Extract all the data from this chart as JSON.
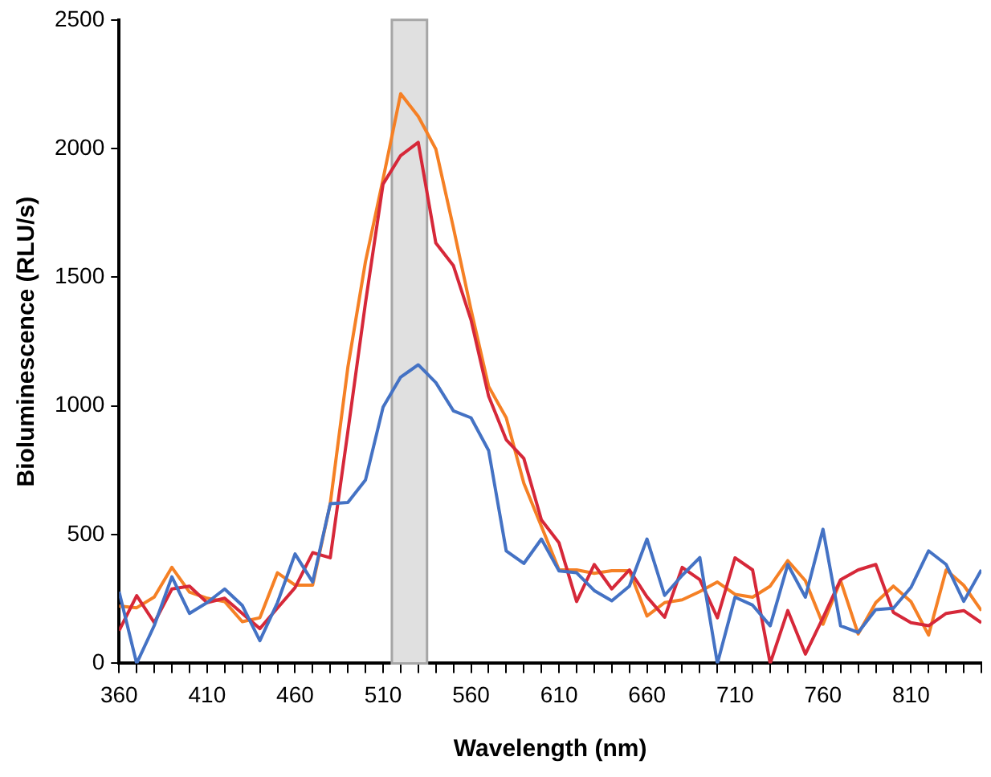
{
  "chart_data": {
    "type": "line",
    "xlabel": "Wavelength (nm)",
    "ylabel": "Bioluminescence (RLU/s)",
    "x": [
      360,
      370,
      380,
      390,
      400,
      410,
      420,
      430,
      440,
      450,
      460,
      470,
      480,
      490,
      500,
      510,
      520,
      530,
      540,
      550,
      560,
      570,
      580,
      590,
      600,
      610,
      620,
      630,
      640,
      650,
      660,
      670,
      680,
      690,
      700,
      710,
      720,
      730,
      740,
      750,
      760,
      770,
      780,
      790,
      800,
      810,
      820,
      830,
      840,
      850
    ],
    "series": [
      {
        "color": "#4472c4",
        "values": [
          278,
          0,
          147,
          336,
          194,
          236,
          289,
          225,
          88,
          236,
          425,
          316,
          620,
          625,
          712,
          995,
          1112,
          1160,
          1091,
          981,
          954,
          827,
          437,
          388,
          483,
          359,
          352,
          283,
          243,
          300,
          483,
          264,
          342,
          411,
          0,
          257,
          226,
          146,
          384,
          257,
          521,
          146,
          120,
          209,
          214,
          295,
          437,
          384,
          241,
          363
        ]
      },
      {
        "color": "#d62839",
        "values": [
          127,
          263,
          158,
          289,
          300,
          236,
          253,
          194,
          135,
          215,
          294,
          430,
          410,
          900,
          1400,
          1862,
          1973,
          2024,
          1633,
          1545,
          1334,
          1038,
          869,
          796,
          557,
          468,
          240,
          384,
          289,
          363,
          258,
          179,
          373,
          325,
          177,
          410,
          363,
          0,
          205,
          36,
          177,
          325,
          363,
          384,
          198,
          158,
          146,
          194,
          205,
          158
        ]
      },
      {
        "color": "#f58025",
        "values": [
          223,
          216,
          258,
          373,
          277,
          253,
          240,
          162,
          177,
          352,
          304,
          304,
          620,
          1150,
          1560,
          1881,
          2213,
          2125,
          1998,
          1692,
          1374,
          1076,
          954,
          700,
          532,
          363,
          363,
          350,
          360,
          360,
          184,
          236,
          247,
          279,
          316,
          268,
          257,
          300,
          399,
          321,
          152,
          321,
          114,
          236,
          300,
          240,
          110,
          363,
          303,
          205
        ]
      }
    ],
    "xlim": [
      360,
      850
    ],
    "xticks": [
      360,
      {
        "value": 370,
        "label": null
      },
      {
        "value": 380,
        "label": null
      },
      {
        "value": 390,
        "label": null
      },
      {
        "value": 400,
        "label": null
      },
      410,
      {
        "value": 420,
        "label": null
      },
      {
        "value": 430,
        "label": null
      },
      {
        "value": 440,
        "label": null
      },
      {
        "value": 450,
        "label": null
      },
      460,
      {
        "value": 470,
        "label": null
      },
      {
        "value": 480,
        "label": null
      },
      {
        "value": 490,
        "label": null
      },
      {
        "value": 500,
        "label": null
      },
      510,
      {
        "value": 520,
        "label": null
      },
      {
        "value": 530,
        "label": null
      },
      {
        "value": 540,
        "label": null
      },
      {
        "value": 550,
        "label": null
      },
      560,
      {
        "value": 570,
        "label": null
      },
      {
        "value": 580,
        "label": null
      },
      {
        "value": 590,
        "label": null
      },
      {
        "value": 600,
        "label": null
      },
      610,
      {
        "value": 620,
        "label": null
      },
      {
        "value": 630,
        "label": null
      },
      {
        "value": 640,
        "label": null
      },
      {
        "value": 650,
        "label": null
      },
      660,
      {
        "value": 670,
        "label": null
      },
      {
        "value": 680,
        "label": null
      },
      {
        "value": 690,
        "label": null
      },
      {
        "value": 700,
        "label": null
      },
      710,
      {
        "value": 720,
        "label": null
      },
      {
        "value": 730,
        "label": null
      },
      {
        "value": 740,
        "label": null
      },
      {
        "value": 750,
        "label": null
      },
      760,
      {
        "value": 770,
        "label": null
      },
      {
        "value": 780,
        "label": null
      },
      {
        "value": 790,
        "label": null
      },
      {
        "value": 800,
        "label": null
      },
      810,
      {
        "value": 820,
        "label": null
      },
      {
        "value": 830,
        "label": null
      },
      {
        "value": 840,
        "label": null
      },
      {
        "value": 850,
        "label": null
      }
    ],
    "ylim": [
      0,
      2500
    ],
    "yticks": [
      0,
      500,
      1000,
      1500,
      2000,
      2500
    ],
    "bands": [
      {
        "axis": "x",
        "from": 515,
        "to": 535,
        "color": "#e0e0e0"
      }
    ],
    "grid": false,
    "legend": false,
    "marker": "none",
    "line_style": "solid"
  }
}
